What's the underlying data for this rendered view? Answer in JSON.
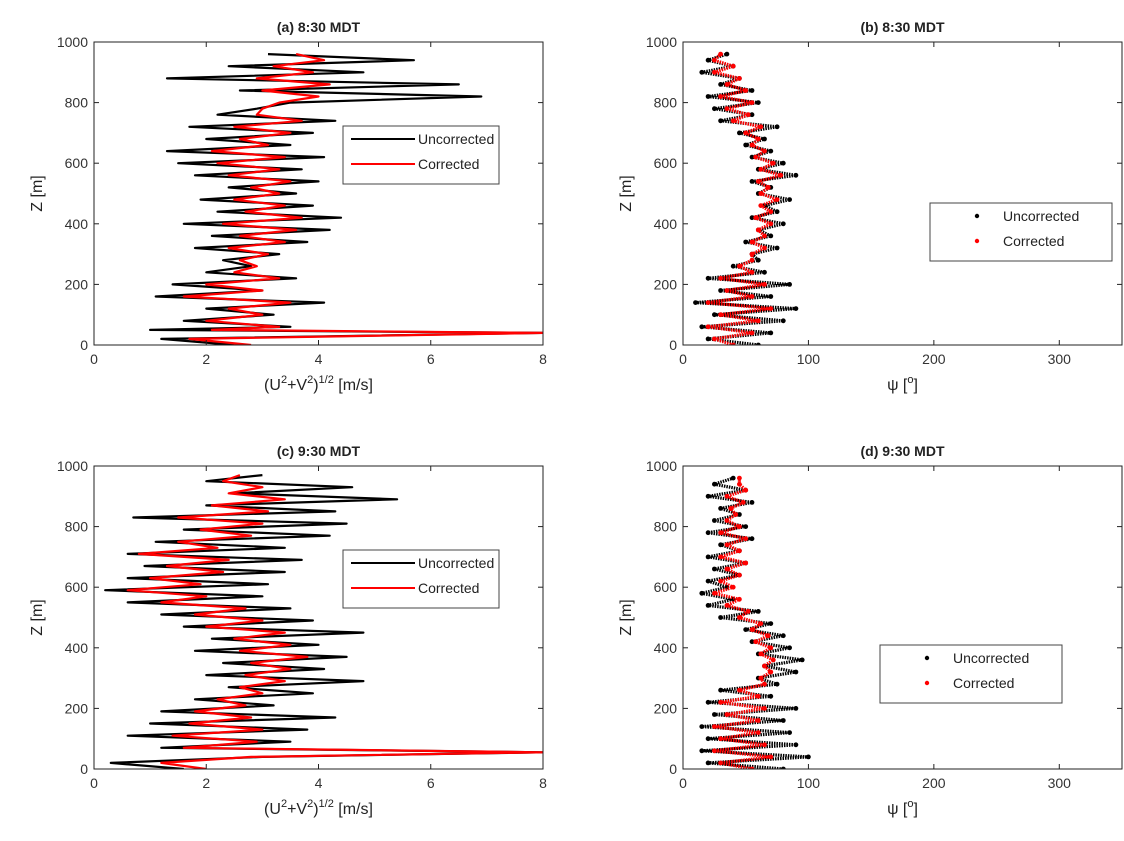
{
  "colors": {
    "uncorrected": "#000000",
    "corrected": "#ff0000"
  },
  "chart_data": [
    {
      "type": "line",
      "title": "(a) 8:30 MDT",
      "xlabel": "(U²+V²)¹ᐟ² [m/s]",
      "xlabel_parts": {
        "base": "(U",
        "sup1": "2",
        "mid": "+V",
        "sup2": "2",
        "close": ")",
        "sup3": "1/2",
        "unit": " [m/s]"
      },
      "ylabel": "Z [m]",
      "xlim": [
        0,
        8
      ],
      "ylim": [
        0,
        1000
      ],
      "xticks": [
        0,
        2,
        4,
        6,
        8
      ],
      "yticks": [
        0,
        200,
        400,
        600,
        800,
        1000
      ],
      "legend": {
        "position": "center-right",
        "entries": [
          "Uncorrected",
          "Corrected"
        ]
      },
      "series": [
        {
          "name": "Uncorrected",
          "style": "line",
          "z": [
            0,
            20,
            40,
            50,
            60,
            80,
            100,
            120,
            140,
            160,
            180,
            200,
            220,
            240,
            260,
            280,
            300,
            320,
            340,
            360,
            380,
            400,
            420,
            440,
            460,
            480,
            500,
            520,
            540,
            560,
            580,
            600,
            620,
            640,
            660,
            680,
            700,
            720,
            740,
            760,
            780,
            800,
            820,
            840,
            860,
            880,
            900,
            920,
            940,
            960
          ],
          "x": [
            2.5,
            1.2,
            8,
            1.0,
            3.5,
            1.6,
            3.2,
            2.0,
            4.1,
            1.1,
            3.0,
            1.4,
            3.6,
            2.0,
            2.8,
            2.3,
            3.3,
            1.8,
            3.8,
            2.1,
            4.2,
            1.6,
            4.4,
            2.2,
            3.9,
            1.9,
            3.6,
            2.4,
            4.0,
            1.8,
            3.7,
            1.5,
            4.1,
            1.3,
            3.5,
            2.0,
            3.9,
            1.7,
            4.3,
            2.2,
            2.9,
            3.5,
            6.9,
            2.6,
            6.5,
            1.3,
            4.8,
            2.4,
            5.7,
            3.1
          ]
        },
        {
          "name": "Corrected",
          "style": "line",
          "z": [
            0,
            20,
            40,
            50,
            60,
            80,
            100,
            120,
            140,
            160,
            180,
            200,
            220,
            240,
            260,
            280,
            300,
            320,
            340,
            360,
            380,
            400,
            420,
            440,
            460,
            480,
            500,
            520,
            540,
            560,
            580,
            600,
            620,
            640,
            660,
            680,
            700,
            720,
            740,
            760,
            780,
            800,
            820,
            840,
            860,
            880,
            900,
            920,
            940,
            960
          ],
          "x": [
            2.8,
            1.7,
            8,
            2.1,
            3.3,
            2.0,
            3.0,
            2.4,
            3.5,
            1.6,
            3.0,
            2.0,
            3.3,
            2.5,
            2.9,
            2.6,
            3.1,
            2.4,
            3.4,
            2.6,
            3.6,
            2.3,
            3.7,
            2.7,
            3.4,
            2.5,
            3.3,
            2.8,
            3.5,
            2.4,
            3.3,
            2.2,
            3.4,
            2.1,
            3.1,
            2.6,
            3.5,
            2.5,
            3.7,
            2.9,
            3.0,
            3.3,
            4.0,
            3.0,
            4.2,
            2.9,
            3.9,
            3.2,
            4.1,
            3.6
          ]
        }
      ]
    },
    {
      "type": "scatter",
      "title": "(b) 8:30 MDT",
      "xlabel": "ψ [°]",
      "xlabel_parts": {
        "base": "ψ [",
        "sup1": "o",
        "close": "]"
      },
      "ylabel": "Z [m]",
      "xlim": [
        0,
        350
      ],
      "ylim": [
        0,
        1000
      ],
      "xticks": [
        0,
        100,
        200,
        300
      ],
      "yticks": [
        0,
        200,
        400,
        600,
        800,
        1000
      ],
      "legend": {
        "position": "center-right",
        "entries": [
          "Uncorrected",
          "Corrected"
        ]
      },
      "series": [
        {
          "name": "Uncorrected",
          "style": "points",
          "z": [
            0,
            20,
            40,
            60,
            80,
            100,
            120,
            140,
            160,
            180,
            200,
            220,
            240,
            260,
            280,
            300,
            320,
            340,
            360,
            380,
            400,
            420,
            440,
            460,
            480,
            500,
            520,
            540,
            560,
            580,
            600,
            620,
            640,
            660,
            680,
            700,
            720,
            740,
            760,
            780,
            800,
            820,
            840,
            860,
            880,
            900,
            920,
            940,
            960
          ],
          "x": [
            60,
            20,
            70,
            15,
            80,
            25,
            90,
            10,
            70,
            30,
            85,
            20,
            65,
            40,
            60,
            55,
            75,
            50,
            70,
            60,
            80,
            55,
            75,
            65,
            85,
            60,
            70,
            55,
            90,
            60,
            80,
            55,
            70,
            50,
            65,
            45,
            75,
            30,
            55,
            25,
            60,
            20,
            55,
            30,
            45,
            15,
            40,
            20,
            35
          ]
        },
        {
          "name": "Corrected",
          "style": "points",
          "z": [
            0,
            20,
            40,
            60,
            80,
            100,
            120,
            140,
            160,
            180,
            200,
            220,
            240,
            260,
            280,
            300,
            320,
            340,
            360,
            380,
            400,
            420,
            440,
            460,
            480,
            500,
            520,
            540,
            560,
            580,
            600,
            620,
            640,
            660,
            680,
            700,
            720,
            740,
            760,
            780,
            800,
            820,
            840,
            860,
            880,
            900,
            920,
            940,
            960
          ],
          "x": [
            40,
            25,
            55,
            20,
            60,
            30,
            70,
            20,
            55,
            35,
            65,
            30,
            55,
            45,
            55,
            55,
            65,
            55,
            65,
            60,
            70,
            58,
            70,
            62,
            75,
            62,
            68,
            60,
            78,
            62,
            72,
            58,
            65,
            55,
            60,
            50,
            62,
            40,
            52,
            35,
            55,
            30,
            50,
            35,
            45,
            25,
            40,
            25,
            30
          ]
        }
      ]
    },
    {
      "type": "line",
      "title": "(c) 9:30 MDT",
      "xlabel": "(U²+V²)¹ᐟ² [m/s]",
      "xlabel_parts": {
        "base": "(U",
        "sup1": "2",
        "mid": "+V",
        "sup2": "2",
        "close": ")",
        "sup3": "1/2",
        "unit": " [m/s]"
      },
      "ylabel": "Z [m]",
      "xlim": [
        0,
        8
      ],
      "ylim": [
        0,
        1000
      ],
      "xticks": [
        0,
        2,
        4,
        6,
        8
      ],
      "yticks": [
        0,
        200,
        400,
        600,
        800,
        1000
      ],
      "legend": {
        "position": "center-right",
        "entries": [
          "Uncorrected",
          "Corrected"
        ]
      },
      "series": [
        {
          "name": "Uncorrected",
          "style": "line",
          "z": [
            0,
            20,
            40,
            55,
            70,
            90,
            110,
            130,
            150,
            170,
            190,
            210,
            230,
            250,
            270,
            290,
            310,
            330,
            350,
            370,
            390,
            410,
            430,
            450,
            470,
            490,
            510,
            530,
            550,
            570,
            590,
            610,
            630,
            650,
            670,
            690,
            710,
            730,
            750,
            770,
            790,
            810,
            830,
            850,
            870,
            890,
            910,
            930,
            950,
            970
          ],
          "x": [
            1.6,
            0.3,
            3.0,
            8,
            1.2,
            3.5,
            0.6,
            3.8,
            1.0,
            4.3,
            1.2,
            3.2,
            1.8,
            3.9,
            2.4,
            4.8,
            2.0,
            4.1,
            2.3,
            4.5,
            1.8,
            4.0,
            2.1,
            4.8,
            1.6,
            3.9,
            1.2,
            3.5,
            0.6,
            3.0,
            0.2,
            3.1,
            0.6,
            3.4,
            0.9,
            3.7,
            0.6,
            3.4,
            1.1,
            4.2,
            1.6,
            4.5,
            0.7,
            4.3,
            2.0,
            5.4,
            2.5,
            4.6,
            2.0,
            3.0
          ]
        },
        {
          "name": "Corrected",
          "style": "line",
          "z": [
            0,
            20,
            40,
            55,
            70,
            90,
            110,
            130,
            150,
            170,
            190,
            210,
            230,
            250,
            270,
            290,
            310,
            330,
            350,
            370,
            390,
            410,
            430,
            450,
            470,
            490,
            510,
            530,
            550,
            570,
            590,
            610,
            630,
            650,
            670,
            690,
            710,
            730,
            750,
            770,
            790,
            810,
            830,
            850,
            870,
            890,
            910,
            930,
            950,
            970
          ],
          "x": [
            2.0,
            1.2,
            2.8,
            8,
            1.6,
            2.9,
            1.4,
            3.0,
            1.7,
            2.8,
            1.8,
            2.7,
            2.2,
            3.0,
            2.6,
            3.4,
            2.7,
            3.5,
            2.8,
            3.8,
            2.6,
            3.5,
            2.5,
            3.4,
            2.0,
            3.0,
            1.8,
            2.7,
            1.2,
            2.0,
            0.6,
            1.9,
            1.0,
            2.3,
            1.3,
            2.4,
            0.8,
            2.2,
            1.5,
            2.8,
            1.9,
            3.0,
            1.5,
            3.1,
            2.1,
            3.4,
            2.4,
            3.0,
            2.3,
            2.6
          ]
        }
      ]
    },
    {
      "type": "scatter",
      "title": "(d) 9:30 MDT",
      "xlabel": "ψ [°]",
      "xlabel_parts": {
        "base": "ψ [",
        "sup1": "o",
        "close": "]"
      },
      "ylabel": "Z [m]",
      "xlim": [
        0,
        350
      ],
      "ylim": [
        0,
        1000
      ],
      "xticks": [
        0,
        100,
        200,
        300
      ],
      "yticks": [
        0,
        200,
        400,
        600,
        800,
        1000
      ],
      "legend": {
        "position": "center-right",
        "entries": [
          "Uncorrected",
          "Corrected"
        ]
      },
      "series": [
        {
          "name": "Uncorrected",
          "style": "points",
          "z": [
            0,
            20,
            40,
            60,
            80,
            100,
            120,
            140,
            160,
            180,
            200,
            220,
            240,
            260,
            280,
            300,
            320,
            340,
            360,
            380,
            400,
            420,
            440,
            460,
            480,
            500,
            520,
            540,
            560,
            580,
            600,
            620,
            640,
            660,
            680,
            700,
            720,
            740,
            760,
            780,
            800,
            820,
            840,
            860,
            880,
            900,
            920,
            940,
            960
          ],
          "x": [
            80,
            20,
            100,
            15,
            90,
            20,
            85,
            15,
            80,
            25,
            90,
            20,
            70,
            30,
            75,
            60,
            90,
            65,
            95,
            60,
            85,
            55,
            80,
            50,
            70,
            30,
            60,
            20,
            40,
            15,
            35,
            20,
            45,
            25,
            50,
            20,
            45,
            30,
            55,
            20,
            50,
            25,
            45,
            30,
            55,
            20,
            50,
            25,
            40
          ]
        },
        {
          "name": "Corrected",
          "style": "points",
          "z": [
            0,
            20,
            40,
            60,
            80,
            100,
            120,
            140,
            160,
            180,
            200,
            220,
            240,
            260,
            280,
            300,
            320,
            340,
            360,
            380,
            400,
            420,
            440,
            460,
            480,
            500,
            520,
            540,
            560,
            580,
            600,
            620,
            640,
            660,
            680,
            700,
            720,
            740,
            760,
            780,
            800,
            820,
            840,
            860,
            880,
            900,
            920,
            940,
            960
          ],
          "x": [
            55,
            30,
            70,
            25,
            65,
            30,
            60,
            25,
            60,
            35,
            65,
            30,
            60,
            45,
            65,
            62,
            70,
            65,
            72,
            62,
            70,
            58,
            68,
            55,
            62,
            45,
            52,
            35,
            45,
            25,
            40,
            30,
            45,
            35,
            50,
            30,
            45,
            35,
            50,
            30,
            45,
            35,
            42,
            38,
            48,
            35,
            50,
            45,
            45
          ]
        }
      ]
    }
  ]
}
